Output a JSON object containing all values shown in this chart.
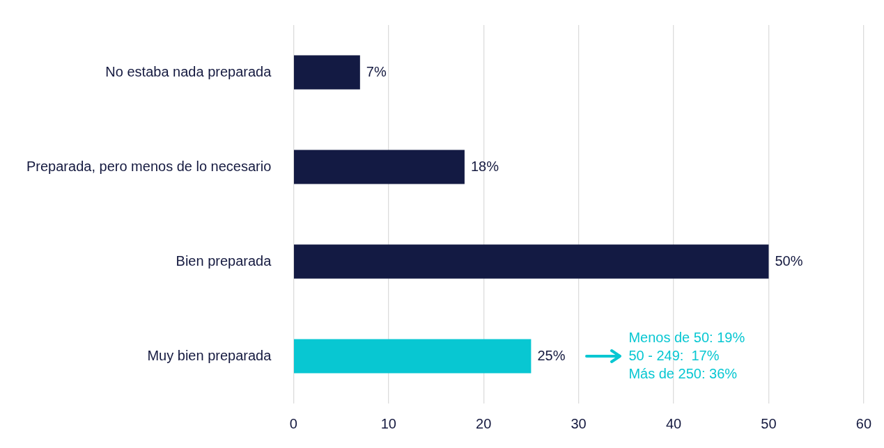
{
  "chart_data": {
    "type": "bar",
    "orientation": "horizontal",
    "categories": [
      "No estaba nada preparada",
      "Preparada, pero menos de lo necesario",
      "Bien preparada",
      "Muy bien preparada"
    ],
    "values": [
      7,
      18,
      50,
      25
    ],
    "colors": [
      "#131a43",
      "#131a43",
      "#131a43",
      "#08c7d2"
    ],
    "value_labels": [
      "7%",
      "18%",
      "50%",
      "25%"
    ],
    "xlim": [
      0,
      60
    ],
    "xticks": [
      0,
      10,
      20,
      30,
      40,
      50,
      60
    ],
    "grid": "x",
    "legend": false,
    "annotations": [
      "Menos de 50: 19%",
      "50 - 249:  17%",
      "Más de 250: 36%"
    ]
  }
}
